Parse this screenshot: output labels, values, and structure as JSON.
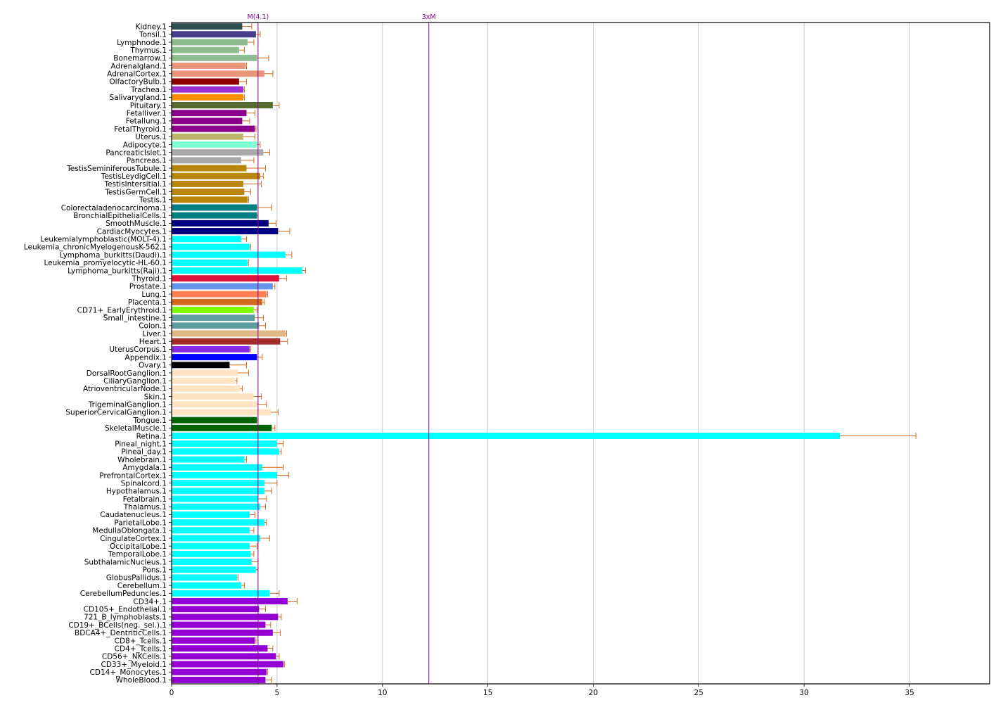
{
  "chart_data": {
    "type": "bar",
    "orientation": "horizontal",
    "title": "",
    "xlabel": "",
    "ylabel": "",
    "xlim": [
      0,
      38.8
    ],
    "x_ticks": [
      0,
      5,
      10,
      15,
      20,
      25,
      30,
      35
    ],
    "grid": "vertical",
    "reference_lines": [
      {
        "label": "M(4.1)",
        "value": 4.1,
        "color": "#8b008b"
      },
      {
        "label": "3xM",
        "value": 12.2,
        "color": "#8b008b"
      }
    ],
    "error_bar_color": "#d2691e",
    "bars": [
      {
        "label": "Kidney.1",
        "value": 3.35,
        "error": 0.45,
        "color": "#2f4f4f"
      },
      {
        "label": "Tonsil.1",
        "value": 4.0,
        "error": 0.2,
        "color": "#483d8b"
      },
      {
        "label": "Lymphnode.1",
        "value": 3.6,
        "error": 0.3,
        "color": "#8fbc8f"
      },
      {
        "label": "Thymus.1",
        "value": 3.2,
        "error": 0.25,
        "color": "#8fbc8f"
      },
      {
        "label": "Bonemarrow.1",
        "value": 4.05,
        "error": 0.55,
        "color": "#8fbc8f"
      },
      {
        "label": "Adrenalgland.1",
        "value": 3.5,
        "error": 0.05,
        "color": "#e9967a"
      },
      {
        "label": "AdrenalCortex.1",
        "value": 4.4,
        "error": 0.4,
        "color": "#e9967a"
      },
      {
        "label": "OlfactoryBulb.1",
        "value": 3.2,
        "error": 0.35,
        "color": "#8b0000"
      },
      {
        "label": "Trachea.1",
        "value": 3.4,
        "error": 0.05,
        "color": "#9932cc"
      },
      {
        "label": "Salivarygland.1",
        "value": 3.4,
        "error": 0.05,
        "color": "#ff8c00"
      },
      {
        "label": "Pituitary.1",
        "value": 4.8,
        "error": 0.3,
        "color": "#556b2f"
      },
      {
        "label": "Fetalliver.1",
        "value": 3.55,
        "error": 0.4,
        "color": "#8b008b"
      },
      {
        "label": "Fetallung.1",
        "value": 3.35,
        "error": 0.35,
        "color": "#8b008b"
      },
      {
        "label": "FetalThyroid.1",
        "value": 3.95,
        "error": 0.05,
        "color": "#8b008b"
      },
      {
        "label": "Uterus.1",
        "value": 3.4,
        "error": 0.55,
        "color": "#bdb76b"
      },
      {
        "label": "Adipocyte.1",
        "value": 4.05,
        "error": 0.15,
        "color": "#7fffd4"
      },
      {
        "label": "PancreaticIslet.1",
        "value": 4.35,
        "error": 0.3,
        "color": "#a9a9a9"
      },
      {
        "label": "Pancreas.1",
        "value": 3.3,
        "error": 0.6,
        "color": "#a9a9a9"
      },
      {
        "label": "TestisSeminiferousTubule.1",
        "value": 3.55,
        "error": 0.9,
        "color": "#b8860b"
      },
      {
        "label": "TestisLeydigCell.1",
        "value": 4.2,
        "error": 0.15,
        "color": "#b8860b"
      },
      {
        "label": "TestisIntersitial.1",
        "value": 3.4,
        "error": 0.85,
        "color": "#b8860b"
      },
      {
        "label": "TestisGermCell.1",
        "value": 3.45,
        "error": 0.3,
        "color": "#b8860b"
      },
      {
        "label": "Testis.1",
        "value": 3.6,
        "error": 0.05,
        "color": "#b8860b"
      },
      {
        "label": "Colorectaladenocarcinoma.1",
        "value": 4.05,
        "error": 0.7,
        "color": "#008080"
      },
      {
        "label": "BronchialEpithelialCells.1",
        "value": 4.05,
        "error": 0.05,
        "color": "#008080"
      },
      {
        "label": "SmoothMuscle.1",
        "value": 4.6,
        "error": 0.35,
        "color": "#000080"
      },
      {
        "label": "CardiacMyocytes.1",
        "value": 5.05,
        "error": 0.55,
        "color": "#000080"
      },
      {
        "label": "Leukemialymphoblastic(MOLT-4).1",
        "value": 3.3,
        "error": 0.25,
        "color": "#00ffff"
      },
      {
        "label": "Leukemia_chronicMyelogenousK-562.1",
        "value": 3.7,
        "error": 0.05,
        "color": "#00ffff"
      },
      {
        "label": "Lymphoma_burkitts(Daudi).1",
        "value": 5.4,
        "error": 0.3,
        "color": "#00ffff"
      },
      {
        "label": "Leukemia_promyelocytic-HL-60.1",
        "value": 3.6,
        "error": 0.05,
        "color": "#00ffff"
      },
      {
        "label": "Lymphoma_burkitts(Raji).1",
        "value": 6.2,
        "error": 0.15,
        "color": "#00ffff"
      },
      {
        "label": "Thyroid.1",
        "value": 5.1,
        "error": 0.35,
        "color": "#dc143c"
      },
      {
        "label": "Prostate.1",
        "value": 4.8,
        "error": 0.1,
        "color": "#6495ed"
      },
      {
        "label": "Lung.1",
        "value": 4.5,
        "error": 0.05,
        "color": "#ff7f50"
      },
      {
        "label": "Placenta.1",
        "value": 4.3,
        "error": 0.1,
        "color": "#d2691e"
      },
      {
        "label": "CD71+_EarlyErythroid.1",
        "value": 3.9,
        "error": 0.15,
        "color": "#7fff00"
      },
      {
        "label": "Small_intestine.1",
        "value": 3.95,
        "error": 0.4,
        "color": "#5f9ea0"
      },
      {
        "label": "Colon.1",
        "value": 4.15,
        "error": 0.3,
        "color": "#5f9ea0"
      },
      {
        "label": "Liver.1",
        "value": 5.4,
        "error": 0.05,
        "color": "#deb887"
      },
      {
        "label": "Heart.1",
        "value": 5.15,
        "error": 0.35,
        "color": "#a52a2a"
      },
      {
        "label": "UterusCorpus.1",
        "value": 3.7,
        "error": 0.05,
        "color": "#8a2be2"
      },
      {
        "label": "Appendix.1",
        "value": 4.05,
        "error": 0.25,
        "color": "#0000ff"
      },
      {
        "label": "Ovary.1",
        "value": 2.75,
        "error": 0.8,
        "color": "#000000"
      },
      {
        "label": "DorsalRootGanglion.1",
        "value": 3.15,
        "error": 0.5,
        "color": "#ffe4c4"
      },
      {
        "label": "CiliaryGanglion.1",
        "value": 3.0,
        "error": 0.1,
        "color": "#ffe4c4"
      },
      {
        "label": "AtrioventricularNode.1",
        "value": 3.25,
        "error": 0.1,
        "color": "#ffe4c4"
      },
      {
        "label": "Skin.1",
        "value": 3.9,
        "error": 0.35,
        "color": "#ffe4c4"
      },
      {
        "label": "TrigeminalGanglion.1",
        "value": 4.05,
        "error": 0.45,
        "color": "#ffe4c4"
      },
      {
        "label": "SuperiorCervicalGanglion.1",
        "value": 4.7,
        "error": 0.35,
        "color": "#ffe4c4"
      },
      {
        "label": "Tongue.1",
        "value": 4.05,
        "error": 0.05,
        "color": "#006400"
      },
      {
        "label": "SkeletalMuscle.1",
        "value": 4.75,
        "error": 0.15,
        "color": "#006400"
      },
      {
        "label": "Retina.1",
        "value": 31.7,
        "error": 3.6,
        "color": "#00ffff"
      },
      {
        "label": "Pineal_night.1",
        "value": 5.0,
        "error": 0.3,
        "color": "#00ffff"
      },
      {
        "label": "Pineal_day.1",
        "value": 5.1,
        "error": 0.1,
        "color": "#00ffff"
      },
      {
        "label": "Wholebrain.1",
        "value": 3.45,
        "error": 0.1,
        "color": "#00ffff"
      },
      {
        "label": "Amygdala.1",
        "value": 4.3,
        "error": 1.0,
        "color": "#00ffff"
      },
      {
        "label": "PrefrontalCortex.1",
        "value": 5.0,
        "error": 0.55,
        "color": "#00ffff"
      },
      {
        "label": "Spinalcord.1",
        "value": 4.4,
        "error": 0.6,
        "color": "#00ffff"
      },
      {
        "label": "Hypothalamus.1",
        "value": 4.4,
        "error": 0.35,
        "color": "#00ffff"
      },
      {
        "label": "Fetalbrain.1",
        "value": 4.1,
        "error": 0.4,
        "color": "#00ffff"
      },
      {
        "label": "Thalamus.1",
        "value": 4.2,
        "error": 0.25,
        "color": "#00ffff"
      },
      {
        "label": "Caudatenucleus.1",
        "value": 3.7,
        "error": 0.25,
        "color": "#00ffff"
      },
      {
        "label": "ParietalLobe.1",
        "value": 4.4,
        "error": 0.1,
        "color": "#00ffff"
      },
      {
        "label": "MedullaOblongata.1",
        "value": 3.7,
        "error": 0.2,
        "color": "#00ffff"
      },
      {
        "label": "CingulateCortex.1",
        "value": 4.2,
        "error": 0.45,
        "color": "#00ffff"
      },
      {
        "label": "OccipitalLobe.1",
        "value": 3.7,
        "error": 0.35,
        "color": "#00ffff"
      },
      {
        "label": "TemporalLobe.1",
        "value": 3.75,
        "error": 0.15,
        "color": "#00ffff"
      },
      {
        "label": "SubthalamicNucleus.1",
        "value": 3.8,
        "error": 0.3,
        "color": "#00ffff"
      },
      {
        "label": "Pons.1",
        "value": 4.0,
        "error": 0.1,
        "color": "#00ffff"
      },
      {
        "label": "GlobusPallidus.1",
        "value": 3.1,
        "error": 0.05,
        "color": "#00ffff"
      },
      {
        "label": "Cerebellum.1",
        "value": 3.3,
        "error": 0.15,
        "color": "#00ffff"
      },
      {
        "label": "CerebellumPeduncles.1",
        "value": 4.65,
        "error": 0.45,
        "color": "#00ffff"
      },
      {
        "label": "CD34+.1",
        "value": 5.5,
        "error": 0.45,
        "color": "#9400d3"
      },
      {
        "label": "CD105+_Endothelial.1",
        "value": 4.15,
        "error": 0.3,
        "color": "#9400d3"
      },
      {
        "label": "721_B_lymphoblasts.1",
        "value": 5.05,
        "error": 0.15,
        "color": "#9400d3"
      },
      {
        "label": "CD19+_BCells(neg._sel.).1",
        "value": 4.45,
        "error": 0.25,
        "color": "#9400d3"
      },
      {
        "label": "BDCA4+_DentriticCells.1",
        "value": 4.8,
        "error": 0.35,
        "color": "#9400d3"
      },
      {
        "label": "CD8+_Tcells.1",
        "value": 3.95,
        "error": 0.05,
        "color": "#9400d3"
      },
      {
        "label": "CD4+_Tcells.1",
        "value": 4.55,
        "error": 0.25,
        "color": "#9400d3"
      },
      {
        "label": "CD56+_NKCells.1",
        "value": 4.95,
        "error": 0.15,
        "color": "#9400d3"
      },
      {
        "label": "CD33+_Myeloid.1",
        "value": 5.3,
        "error": 0.05,
        "color": "#9400d3"
      },
      {
        "label": "CD14+_Monocytes.1",
        "value": 4.5,
        "error": 0.05,
        "color": "#9400d3"
      },
      {
        "label": "WholeBlood.1",
        "value": 4.45,
        "error": 0.3,
        "color": "#9400d3"
      }
    ]
  }
}
